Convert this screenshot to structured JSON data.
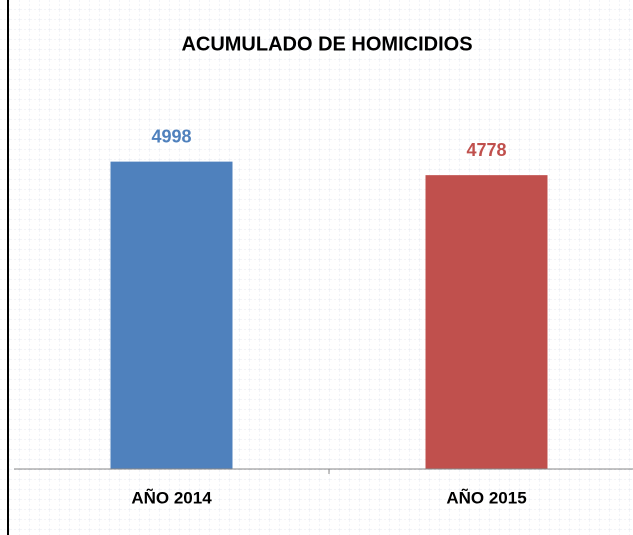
{
  "chart_data": {
    "type": "bar",
    "title": "ACUMULADO DE HOMICIDIOS",
    "categories": [
      "AÑO 2014",
      "AÑO 2015"
    ],
    "values": [
      4998,
      4778
    ],
    "colors": [
      "#4f81bd",
      "#c0504d"
    ],
    "ylim": [
      0,
      6000
    ]
  }
}
